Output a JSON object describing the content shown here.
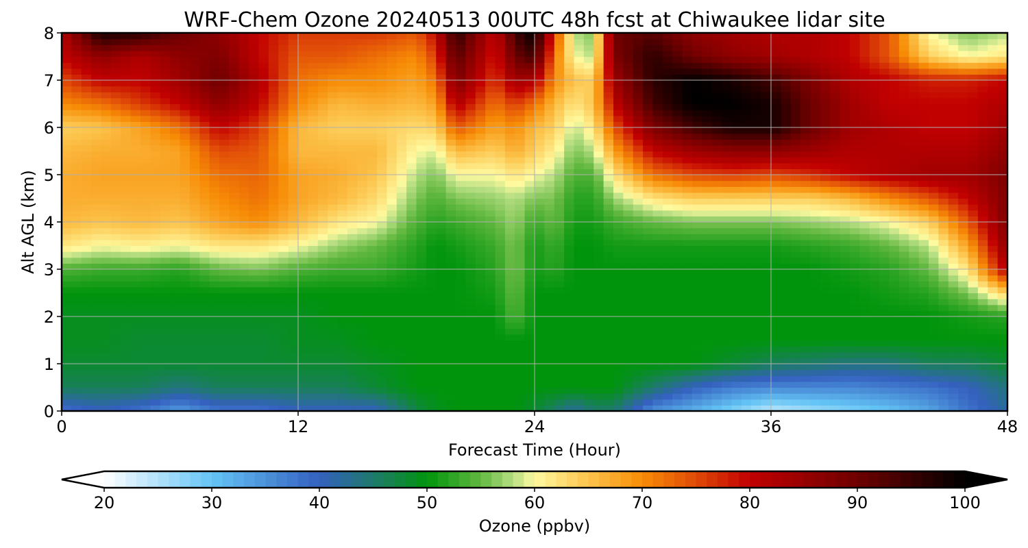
{
  "chart_data": {
    "type": "heatmap",
    "title": "WRF-Chem Ozone  20240513 00UTC 48h fcst at Chiwaukee lidar site",
    "xlabel": "Forecast Time (Hour)",
    "ylabel": "Alt AGL (km)",
    "xlim": [
      0,
      48
    ],
    "ylim": [
      0,
      8
    ],
    "xticks": [
      0,
      12,
      24,
      36,
      48
    ],
    "yticks": [
      0,
      1,
      2,
      3,
      4,
      5,
      6,
      7,
      8
    ],
    "grid": true,
    "x": [
      0,
      2,
      4,
      6,
      8,
      10,
      12,
      14,
      16,
      18,
      19,
      20,
      22,
      23,
      24,
      25,
      26,
      27,
      28,
      30,
      32,
      34,
      36,
      38,
      40,
      42,
      44,
      46,
      48
    ],
    "y": [
      0,
      0.5,
      1,
      1.5,
      2,
      2.5,
      3,
      3.5,
      4,
      4.5,
      5,
      5.5,
      6,
      6.5,
      7,
      7.5,
      8
    ],
    "z": [
      [
        38,
        40,
        38,
        34,
        38,
        38,
        40,
        40,
        40,
        47,
        49,
        50,
        50,
        50,
        48,
        45,
        42,
        45,
        45,
        35,
        32,
        28,
        24,
        26,
        28,
        30,
        33,
        38,
        42
      ],
      [
        46,
        46,
        46,
        44,
        46,
        46,
        46,
        46,
        48,
        50,
        50,
        50,
        50,
        50,
        50,
        50,
        50,
        50,
        50,
        45,
        40,
        37,
        36,
        36,
        36,
        37,
        38,
        40,
        44
      ],
      [
        48,
        48,
        48,
        48,
        48,
        48,
        48,
        48,
        49,
        50,
        50,
        50,
        50,
        50,
        50,
        50,
        50,
        50,
        50,
        50,
        50,
        48,
        46,
        45,
        44,
        44,
        46,
        46,
        48
      ],
      [
        49,
        49,
        48,
        48,
        48,
        48,
        49,
        49,
        50,
        50,
        50,
        50,
        50,
        50,
        50,
        50,
        50,
        50,
        50,
        50,
        50,
        50,
        50,
        50,
        50,
        50,
        50,
        50,
        50
      ],
      [
        49,
        49,
        49,
        49,
        49,
        49,
        49,
        50,
        50,
        50,
        50,
        50,
        50,
        54,
        50,
        50,
        50,
        50,
        50,
        50,
        50,
        50,
        50,
        50,
        50,
        50,
        50,
        51,
        52
      ],
      [
        50,
        50,
        50,
        50,
        50,
        50,
        50,
        50,
        50,
        50,
        50,
        50,
        51,
        55,
        50,
        50,
        50,
        50,
        50,
        50,
        50,
        50,
        50,
        50,
        50,
        51,
        52,
        56,
        64
      ],
      [
        54,
        53,
        53,
        52,
        55,
        56,
        54,
        53,
        53,
        51,
        50,
        50,
        52,
        56,
        51,
        52,
        50,
        50,
        50,
        50,
        50,
        50,
        50,
        50,
        51,
        52,
        55,
        62,
        82
      ],
      [
        62,
        60,
        61,
        60,
        62,
        62,
        60,
        57,
        55,
        52,
        50,
        51,
        53,
        56,
        51,
        53,
        50,
        50,
        51,
        51,
        51,
        51,
        51,
        52,
        53,
        55,
        58,
        68,
        86
      ],
      [
        66,
        65,
        66,
        65,
        68,
        70,
        66,
        62,
        60,
        54,
        52,
        53,
        55,
        57,
        53,
        55,
        51,
        51,
        53,
        55,
        56,
        56,
        56,
        57,
        58,
        60,
        64,
        74,
        88
      ],
      [
        67,
        67,
        67,
        67,
        70,
        72,
        68,
        66,
        63,
        56,
        54,
        56,
        57,
        58,
        56,
        56,
        52,
        52,
        57,
        62,
        64,
        64,
        64,
        64,
        66,
        70,
        74,
        80,
        88
      ],
      [
        67,
        68,
        68,
        68,
        72,
        73,
        68,
        67,
        65,
        58,
        56,
        60,
        60,
        62,
        60,
        58,
        54,
        54,
        62,
        72,
        75,
        76,
        75,
        77,
        80,
        82,
        84,
        84,
        88
      ],
      [
        66,
        67,
        67,
        68,
        75,
        74,
        66,
        66,
        66,
        60,
        59,
        66,
        64,
        67,
        64,
        61,
        56,
        58,
        68,
        80,
        84,
        86,
        86,
        84,
        82,
        82,
        82,
        82,
        86
      ],
      [
        64,
        65,
        68,
        72,
        80,
        76,
        66,
        64,
        64,
        63,
        64,
        74,
        68,
        70,
        66,
        64,
        58,
        62,
        74,
        88,
        94,
        98,
        98,
        90,
        84,
        82,
        80,
        80,
        84
      ],
      [
        70,
        72,
        76,
        80,
        86,
        80,
        70,
        66,
        67,
        66,
        68,
        82,
        72,
        76,
        72,
        66,
        62,
        65,
        80,
        94,
        100,
        100,
        98,
        90,
        84,
        80,
        80,
        80,
        82
      ],
      [
        75,
        80,
        80,
        84,
        90,
        82,
        72,
        70,
        70,
        68,
        72,
        88,
        76,
        84,
        82,
        70,
        65,
        64,
        84,
        96,
        100,
        98,
        94,
        88,
        82,
        80,
        78,
        78,
        80
      ],
      [
        80,
        86,
        82,
        86,
        88,
        80,
        74,
        74,
        72,
        70,
        76,
        92,
        78,
        90,
        94,
        72,
        60,
        58,
        88,
        96,
        90,
        86,
        84,
        82,
        80,
        74,
        64,
        60,
        62
      ],
      [
        82,
        98,
        96,
        90,
        86,
        80,
        76,
        76,
        76,
        74,
        80,
        96,
        80,
        94,
        100,
        76,
        58,
        56,
        90,
        92,
        86,
        84,
        82,
        82,
        80,
        74,
        60,
        56,
        58
      ]
    ],
    "colorbar": {
      "label": "Ozone  (ppbv)",
      "min": 20,
      "max": 100,
      "ticks": [
        20,
        30,
        40,
        50,
        60,
        70,
        80,
        90,
        100
      ],
      "extend": "both",
      "colors": [
        {
          "value": 20,
          "color": "#ffffff"
        },
        {
          "value": 30,
          "color": "#64c4f5"
        },
        {
          "value": 40,
          "color": "#3460bf"
        },
        {
          "value": 45,
          "color": "#1e7a6c"
        },
        {
          "value": 50,
          "color": "#00940c"
        },
        {
          "value": 55,
          "color": "#62b840"
        },
        {
          "value": 58,
          "color": "#b6de82"
        },
        {
          "value": 60,
          "color": "#fffaa0"
        },
        {
          "value": 65,
          "color": "#fcc44c"
        },
        {
          "value": 70,
          "color": "#f78c06"
        },
        {
          "value": 75,
          "color": "#e04a08"
        },
        {
          "value": 80,
          "color": "#c10000"
        },
        {
          "value": 90,
          "color": "#6e0000"
        },
        {
          "value": 100,
          "color": "#000000"
        }
      ]
    }
  }
}
